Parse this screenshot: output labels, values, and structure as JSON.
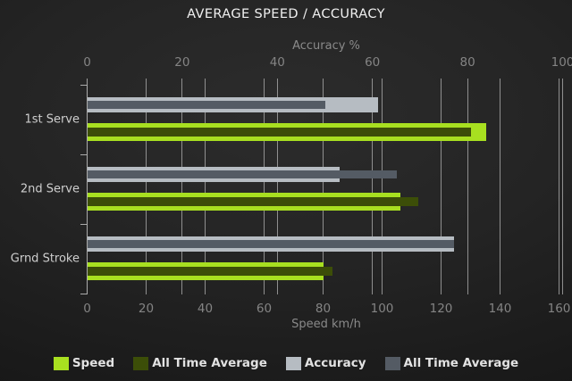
{
  "title": "AVERAGE SPEED / ACCURACY",
  "categories": [
    "1st Serve",
    "2nd Serve",
    "Grnd Stroke"
  ],
  "legend": [
    {
      "id": "speed",
      "label": "Speed",
      "color": "#a8e020"
    },
    {
      "id": "ata-speed",
      "label": "All Time Average",
      "color": "#3c4e08"
    },
    {
      "id": "accuracy",
      "label": "Accuracy",
      "color": "#b6bcc2"
    },
    {
      "id": "ata-accuracy",
      "label": "All Time Average",
      "color": "#545b64"
    }
  ],
  "chart_data": {
    "type": "bar",
    "orientation": "horizontal",
    "title": "AVERAGE SPEED / ACCURACY",
    "categories": [
      "1st Serve",
      "2nd Serve",
      "Grnd Stroke"
    ],
    "series": [
      {
        "id": "speed",
        "name": "Speed",
        "axis": "bottom",
        "unit": "km/h",
        "color": "#a8e020",
        "values": [
          135,
          106,
          80
        ]
      },
      {
        "id": "ata-speed",
        "name": "All Time Average",
        "axis": "bottom",
        "unit": "km/h",
        "color": "#3c4e08",
        "values": [
          130,
          112,
          83
        ]
      },
      {
        "id": "accuracy",
        "name": "Accuracy",
        "axis": "top",
        "unit": "%",
        "color": "#b6bcc2",
        "values": [
          61,
          53,
          77
        ]
      },
      {
        "id": "ata-accuracy",
        "name": "All Time Average",
        "axis": "top",
        "unit": "%",
        "color": "#545b64",
        "values": [
          50,
          65,
          77
        ]
      }
    ],
    "top_axis": {
      "label": "Accuracy %",
      "range": [
        0,
        100
      ],
      "ticks": [
        0,
        20,
        40,
        60,
        80,
        100
      ]
    },
    "bottom_axis": {
      "label": "Speed km/h",
      "range": [
        0,
        160
      ],
      "ticks": [
        0,
        20,
        40,
        60,
        80,
        100,
        120,
        140,
        160
      ]
    },
    "grid": true,
    "legend_position": "bottom"
  }
}
